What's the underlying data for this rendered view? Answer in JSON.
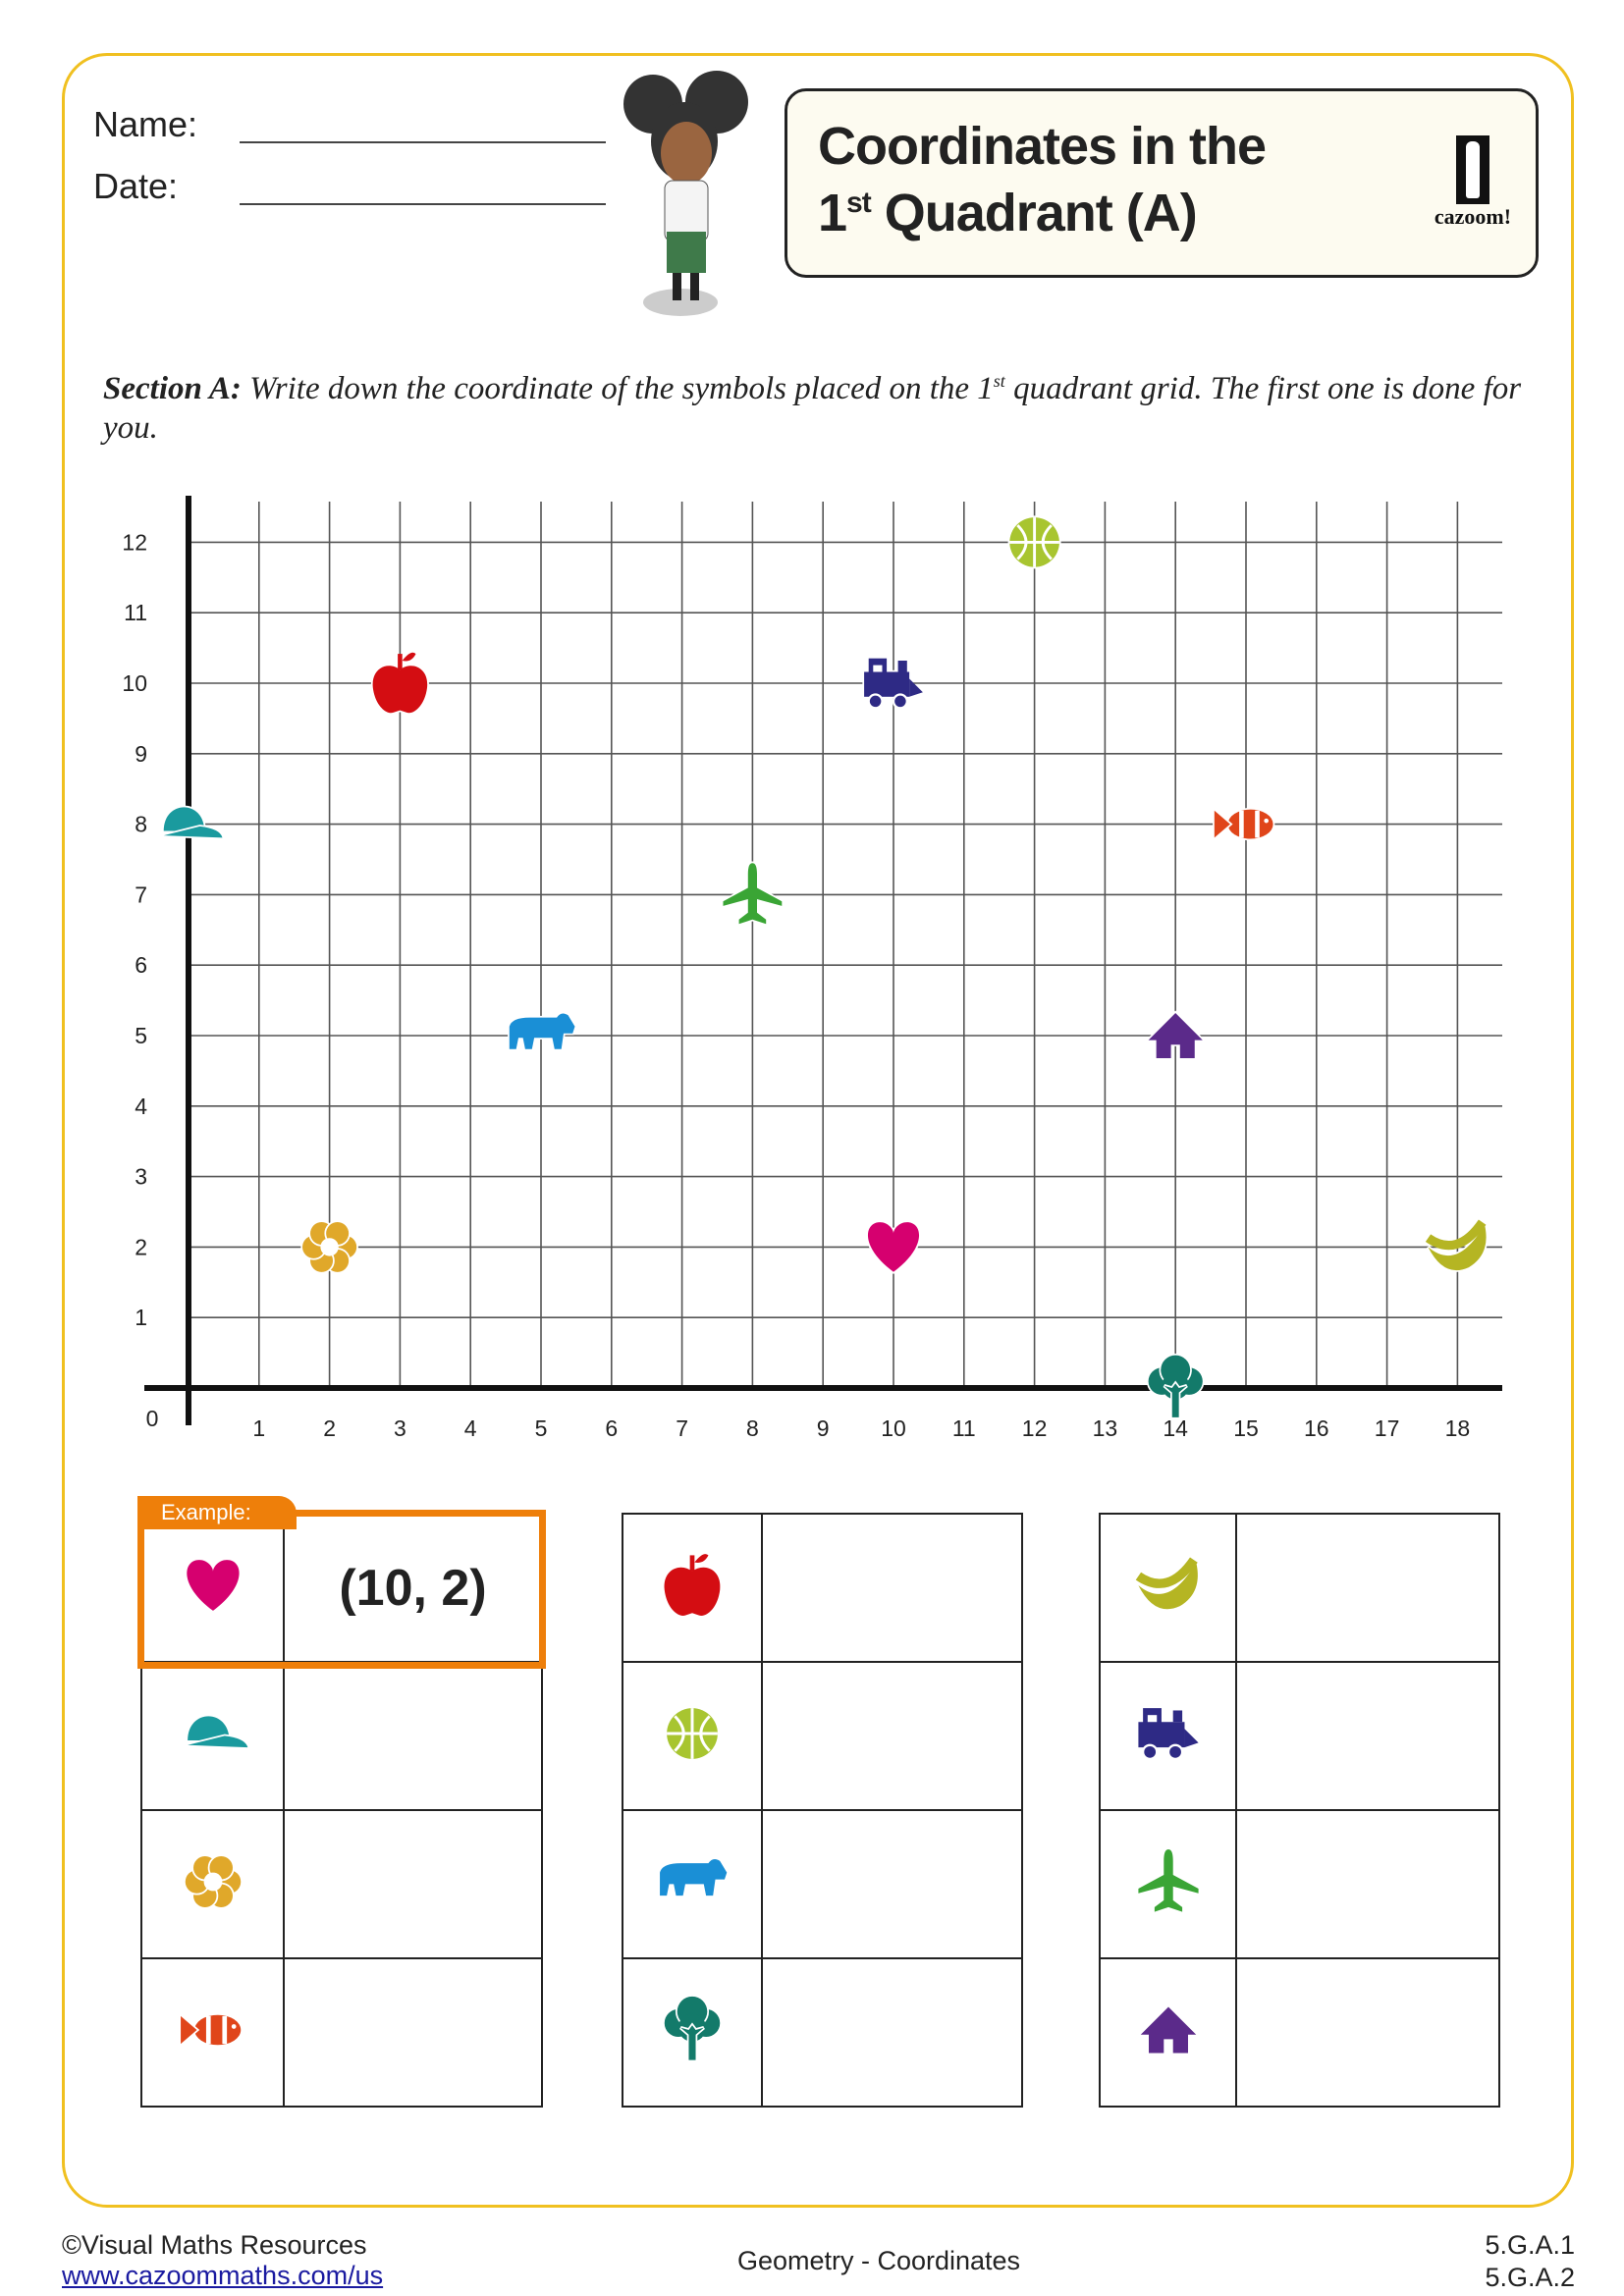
{
  "header": {
    "name_label": "Name:",
    "date_label": "Date:",
    "title_line1": "Coordinates in the",
    "title_line2_num": "1",
    "title_line2_sup": "st",
    "title_line2_rest": " Quadrant (A)",
    "logo_text": "cazoom!"
  },
  "section": {
    "label": "Section A:",
    "text_before_sup": " Write down the coordinate of the symbols placed on the 1",
    "sup": "st",
    "text_after_sup": " quadrant grid. The first one is done for you."
  },
  "grid": {
    "x_ticks": [
      "1",
      "2",
      "3",
      "4",
      "5",
      "6",
      "7",
      "8",
      "9",
      "10",
      "11",
      "12",
      "13",
      "14",
      "15",
      "16",
      "17",
      "18"
    ],
    "y_ticks": [
      "1",
      "2",
      "3",
      "4",
      "5",
      "6",
      "7",
      "8",
      "9",
      "10",
      "11",
      "12"
    ],
    "origin_label": "0",
    "xlim": [
      0,
      18
    ],
    "ylim": [
      0,
      12
    ],
    "symbols": [
      {
        "icon": "apple-icon",
        "x": 3,
        "y": 10,
        "color": "#d40d12"
      },
      {
        "icon": "basketball-icon",
        "x": 12,
        "y": 12,
        "color": "#a8c530"
      },
      {
        "icon": "train-icon",
        "x": 10,
        "y": 10,
        "color": "#2e2a85"
      },
      {
        "icon": "cap-icon",
        "x": 0,
        "y": 8,
        "color": "#1a9a9e"
      },
      {
        "icon": "fish-icon",
        "x": 15,
        "y": 8,
        "color": "#e0451a"
      },
      {
        "icon": "plane-icon",
        "x": 8,
        "y": 7,
        "color": "#3aa535"
      },
      {
        "icon": "bear-icon",
        "x": 5,
        "y": 5,
        "color": "#1a8fd6"
      },
      {
        "icon": "house-icon",
        "x": 14,
        "y": 5,
        "color": "#5b2a8a"
      },
      {
        "icon": "flower-icon",
        "x": 2,
        "y": 2,
        "color": "#e0a82a"
      },
      {
        "icon": "heart-icon",
        "x": 10,
        "y": 2,
        "color": "#d6006f"
      },
      {
        "icon": "banana-icon",
        "x": 18,
        "y": 2,
        "color": "#b5b523"
      },
      {
        "icon": "tree-icon",
        "x": 14,
        "y": 0,
        "color": "#137a6a"
      }
    ]
  },
  "example_label": "Example:",
  "tables": [
    {
      "rows": [
        {
          "icon": "heart-icon",
          "answer": "(10, 2)"
        },
        {
          "icon": "cap-icon",
          "answer": ""
        },
        {
          "icon": "flower-icon",
          "answer": ""
        },
        {
          "icon": "fish-icon",
          "answer": ""
        }
      ]
    },
    {
      "rows": [
        {
          "icon": "apple-icon",
          "answer": ""
        },
        {
          "icon": "basketball-icon",
          "answer": ""
        },
        {
          "icon": "bear-icon",
          "answer": ""
        },
        {
          "icon": "tree-icon",
          "answer": ""
        }
      ]
    },
    {
      "rows": [
        {
          "icon": "banana-icon",
          "answer": ""
        },
        {
          "icon": "train-icon",
          "answer": ""
        },
        {
          "icon": "plane-icon",
          "answer": ""
        },
        {
          "icon": "house-icon",
          "answer": ""
        }
      ]
    }
  ],
  "footer": {
    "copyright": "©Visual Maths Resources",
    "url": "www.cazoommaths.com/us",
    "topic": "Geometry - Coordinates",
    "standard1": "5.G.A.1",
    "standard2": "5.G.A.2"
  },
  "colors": {
    "border": "#f0c020",
    "example": "#ee7f0a"
  }
}
